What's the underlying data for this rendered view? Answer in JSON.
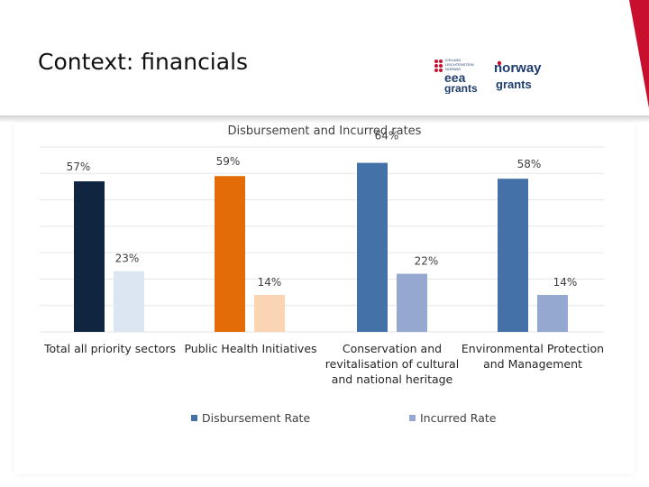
{
  "page": {
    "title": "Context: financials",
    "logos": [
      {
        "name": "eea-grants-logo",
        "text": [
          "ICELAND",
          "LIECHTENSTEIN",
          "NORWAY",
          "eea",
          "grants"
        ],
        "color": "#1f3c6e"
      },
      {
        "name": "norway-grants-logo",
        "text": [
          "norway",
          "grants"
        ],
        "color": "#1f3c6e",
        "accent": "#c8102e"
      }
    ],
    "accent_color": "#c8102e"
  },
  "chart_data": {
    "type": "bar",
    "title": "Disbursement and Incurred rates",
    "xlabel": "",
    "ylabel": "",
    "ylim": [
      0,
      70
    ],
    "grid": true,
    "legend": "bottom",
    "categories": [
      [
        "Total all priority sectors"
      ],
      [
        "Public Health Initiatives"
      ],
      [
        "Conservation and",
        "revitalisation of cultural",
        "and national heritage"
      ],
      [
        "Environmental Protection",
        "and Management"
      ]
    ],
    "series": [
      {
        "name": "Disbursement Rate",
        "values": [
          57,
          59,
          64,
          58
        ],
        "labels": [
          "57%",
          "59%",
          "64%",
          "58%"
        ],
        "colors": [
          "#10253f",
          "#e36c09",
          "#4472a8",
          "#4472a8"
        ],
        "legend_color": "#4472a8"
      },
      {
        "name": "Incurred Rate",
        "values": [
          23,
          14,
          22,
          14
        ],
        "labels": [
          "23%",
          "14%",
          "22%",
          "14%"
        ],
        "colors": [
          "#dce6f2",
          "#fbd4b4",
          "#95a9d0",
          "#95a9d0"
        ],
        "legend_color": "#95a9d0"
      }
    ]
  }
}
